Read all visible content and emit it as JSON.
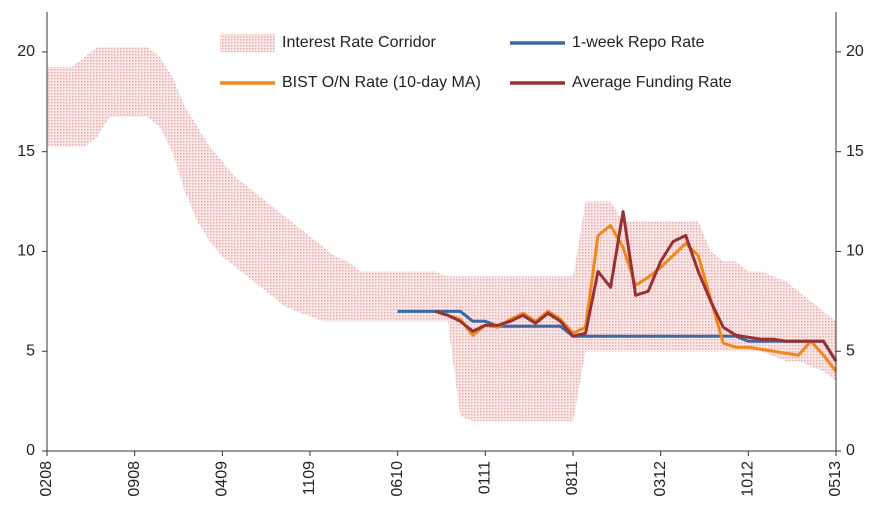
{
  "chart_data": {
    "type": "line",
    "x": [
      "2008-02",
      "2008-03",
      "2008-04",
      "2008-05",
      "2008-06",
      "2008-07",
      "2008-08",
      "2008-09",
      "2008-10",
      "2008-11",
      "2008-12",
      "2009-01",
      "2009-02",
      "2009-03",
      "2009-04",
      "2009-05",
      "2009-06",
      "2009-07",
      "2009-08",
      "2009-09",
      "2009-10",
      "2009-11",
      "2009-12",
      "2010-01",
      "2010-02",
      "2010-03",
      "2010-04",
      "2010-05",
      "2010-06",
      "2010-07",
      "2010-08",
      "2010-09",
      "2010-10",
      "2010-11",
      "2010-12",
      "2011-01",
      "2011-02",
      "2011-03",
      "2011-04",
      "2011-05",
      "2011-06",
      "2011-07",
      "2011-08",
      "2011-09",
      "2011-10",
      "2011-11",
      "2011-12",
      "2012-01",
      "2012-02",
      "2012-03",
      "2012-04",
      "2012-05",
      "2012-06",
      "2012-07",
      "2012-08",
      "2012-09",
      "2012-10",
      "2012-11",
      "2012-12",
      "2013-01",
      "2013-02",
      "2013-03",
      "2013-04",
      "2013-05"
    ],
    "xticks": [
      {
        "value": "2008-02",
        "label": "0208"
      },
      {
        "value": "2008-09",
        "label": "0908"
      },
      {
        "value": "2009-04",
        "label": "0409"
      },
      {
        "value": "2009-11",
        "label": "1109"
      },
      {
        "value": "2010-06",
        "label": "0610"
      },
      {
        "value": "2011-01",
        "label": "0111"
      },
      {
        "value": "2011-08",
        "label": "0811"
      },
      {
        "value": "2012-03",
        "label": "0312"
      },
      {
        "value": "2012-10",
        "label": "1012"
      },
      {
        "value": "2013-05",
        "label": "0513"
      }
    ],
    "ylim": [
      0,
      22
    ],
    "yticks": [
      0,
      5,
      10,
      15,
      20
    ],
    "y2lim": [
      0,
      22
    ],
    "y2ticks": [
      0,
      5,
      10,
      15,
      20
    ],
    "legend": "top",
    "series": [
      {
        "name": "Interest Rate Corridor",
        "color": "#efc3c3",
        "kind": "band",
        "upper": [
          19.25,
          19.25,
          19.25,
          19.75,
          20.25,
          20.25,
          20.25,
          20.25,
          20.25,
          19.75,
          18.75,
          17.25,
          16.25,
          15.25,
          14.5,
          13.75,
          13.25,
          12.75,
          12.25,
          11.75,
          11.25,
          10.75,
          10.25,
          9.75,
          9.5,
          9,
          9,
          9,
          9,
          9,
          9,
          9,
          8.75,
          8.75,
          8.75,
          8.75,
          8.75,
          8.75,
          8.75,
          8.75,
          8.75,
          8.75,
          8.75,
          12.5,
          12.5,
          12.5,
          11.5,
          11.5,
          11.5,
          11.5,
          11.5,
          11.5,
          11.5,
          10,
          9.5,
          9.5,
          9,
          9,
          8.75,
          8.5,
          8,
          7.5,
          7,
          6.5
        ],
        "lower": [
          15.25,
          15.25,
          15.25,
          15.25,
          15.75,
          16.75,
          16.75,
          16.75,
          16.75,
          16.25,
          15,
          13,
          11.5,
          10.5,
          9.75,
          9.25,
          8.75,
          8.25,
          7.75,
          7.25,
          7,
          6.75,
          6.5,
          6.5,
          6.5,
          6.5,
          6.5,
          6.5,
          6.5,
          6.5,
          6.5,
          6.5,
          6.5,
          1.75,
          1.5,
          1.5,
          1.5,
          1.5,
          1.5,
          1.5,
          1.5,
          1.5,
          1.5,
          5,
          5,
          5,
          5,
          5,
          5,
          5,
          5,
          5,
          5,
          5,
          5,
          5,
          5,
          5,
          4.75,
          4.5,
          4.5,
          4.25,
          4,
          3.5
        ]
      },
      {
        "name": "1-week Repo Rate",
        "color": "#3a6aa6",
        "values": [
          null,
          null,
          null,
          null,
          null,
          null,
          null,
          null,
          null,
          null,
          null,
          null,
          null,
          null,
          null,
          null,
          null,
          null,
          null,
          null,
          null,
          null,
          null,
          null,
          null,
          null,
          null,
          null,
          7,
          7,
          7,
          7,
          7,
          7,
          6.5,
          6.5,
          6.25,
          6.25,
          6.25,
          6.25,
          6.25,
          6.25,
          5.75,
          5.75,
          5.75,
          5.75,
          5.75,
          5.75,
          5.75,
          5.75,
          5.75,
          5.75,
          5.75,
          5.75,
          5.75,
          5.75,
          5.5,
          5.5,
          5.5,
          5.5,
          5.5,
          5.5,
          5.5,
          4.5
        ]
      },
      {
        "name": "BIST O/N Rate (10-day MA)",
        "color": "#f0871c",
        "values": [
          null,
          null,
          null,
          null,
          null,
          null,
          null,
          null,
          null,
          null,
          null,
          null,
          null,
          null,
          null,
          null,
          null,
          null,
          null,
          null,
          null,
          null,
          null,
          null,
          null,
          null,
          null,
          null,
          null,
          null,
          null,
          7.0,
          6.8,
          6.6,
          5.8,
          6.3,
          6.2,
          6.6,
          6.9,
          6.5,
          7.0,
          6.6,
          5.9,
          6.2,
          10.8,
          11.3,
          10.2,
          8.3,
          8.7,
          9.2,
          9.8,
          10.4,
          9.8,
          7.6,
          5.4,
          5.2,
          5.2,
          5.1,
          5.0,
          4.9,
          4.8,
          5.5,
          4.8,
          4.0
        ]
      },
      {
        "name": "Average Funding Rate",
        "color": "#983232",
        "values": [
          null,
          null,
          null,
          null,
          null,
          null,
          null,
          null,
          null,
          null,
          null,
          null,
          null,
          null,
          null,
          null,
          null,
          null,
          null,
          null,
          null,
          null,
          null,
          null,
          null,
          null,
          null,
          null,
          null,
          null,
          null,
          7.0,
          6.8,
          6.5,
          6.0,
          6.3,
          6.3,
          6.5,
          6.8,
          6.4,
          6.9,
          6.5,
          5.75,
          5.9,
          9.0,
          8.2,
          12.0,
          7.8,
          8.0,
          9.5,
          10.5,
          10.8,
          9.0,
          7.5,
          6.2,
          5.8,
          5.7,
          5.6,
          5.6,
          5.5,
          5.5,
          5.5,
          5.5,
          4.5
        ]
      }
    ]
  }
}
